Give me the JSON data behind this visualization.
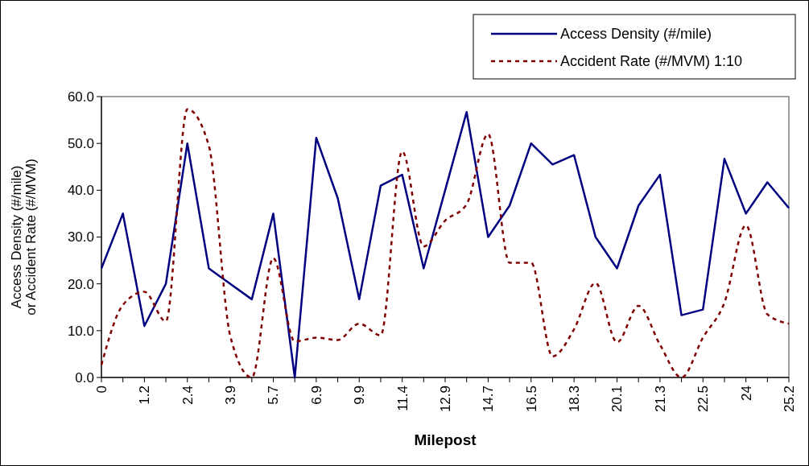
{
  "chart_data": {
    "type": "line",
    "xlabel": "Milepost",
    "ylabel": "Access Density (#/mile) or Accident Rate (#/MVM)",
    "categories": [
      "0",
      null,
      "1.2",
      null,
      "2.4",
      null,
      "3.9",
      null,
      "5.7",
      null,
      "6.9",
      null,
      "9.9",
      null,
      "11.4",
      null,
      "12.9",
      null,
      "14.7",
      null,
      "16.5",
      null,
      "18.3",
      null,
      "20.1",
      null,
      "21.3",
      null,
      "22.5",
      null,
      "24",
      null,
      "25.2"
    ],
    "ylim": [
      0,
      60
    ],
    "yticks": [
      {
        "value": 0,
        "label": "0.0"
      },
      {
        "value": 10,
        "label": "10.0"
      },
      {
        "value": 20,
        "label": "20.0"
      },
      {
        "value": 30,
        "label": "30.0"
      },
      {
        "value": 40,
        "label": "40.0"
      },
      {
        "value": 50,
        "label": "50.0"
      },
      {
        "value": 60,
        "label": "60.0"
      }
    ],
    "legend": "top right",
    "grid": false,
    "series": [
      {
        "name": "Access Density (#/mile)",
        "color": "#000080",
        "line_style": "solid",
        "values": [
          23.3,
          35,
          11,
          20,
          50,
          23.3,
          20,
          16.7,
          35,
          0,
          51.2,
          38.3,
          16.7,
          41,
          43.3,
          23.3,
          40,
          56.7,
          30,
          36.7,
          50,
          45.5,
          47.5,
          30,
          23.3,
          36.7,
          43.3,
          13.3,
          14.5,
          46.7,
          35,
          41.7,
          36.2
        ]
      },
      {
        "name": "Accident Rate (#/MVM) 1:10",
        "color": "#800000",
        "line_style": "dashed",
        "values": [
          2.7,
          15.5,
          18.3,
          12,
          57.3,
          49.5,
          8.8,
          0,
          25.5,
          7.7,
          8.5,
          8,
          11.5,
          9,
          48.3,
          28,
          33.5,
          37,
          52,
          24.5,
          24.5,
          4.5,
          10.3,
          20.2,
          7.5,
          15.3,
          7,
          0,
          8.5,
          16,
          32.5,
          13.5,
          11.5
        ]
      }
    ]
  }
}
